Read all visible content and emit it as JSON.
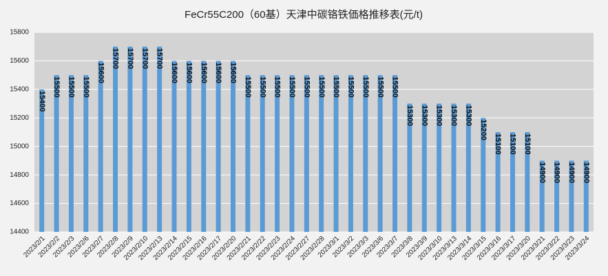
{
  "chart_data": {
    "type": "bar",
    "title": "FeCr55C200（60基）天津中碳铬铁価格推移表(元/t)",
    "categories": [
      "2023/2/1",
      "2023/2/2",
      "2023/2/3",
      "2023/2/6",
      "2023/2/7",
      "2023/2/8",
      "2023/2/9",
      "2023/2/10",
      "2023/2/13",
      "2023/2/14",
      "2023/2/15",
      "2023/2/16",
      "2023/2/17",
      "2023/2/20",
      "2023/2/21",
      "2023/2/22",
      "2023/2/23",
      "2023/2/24",
      "2023/2/27",
      "2023/2/28",
      "2023/3/1",
      "2023/3/2",
      "2023/3/3",
      "2023/3/6",
      "2023/3/7",
      "2023/3/8",
      "2023/3/9",
      "2023/3/10",
      "2023/3/13",
      "2023/3/14",
      "2023/3/15",
      "2023/3/16",
      "2023/3/17",
      "2023/3/20",
      "2023/3/21",
      "2023/3/22",
      "2023/3/23",
      "2023/3/24"
    ],
    "values": [
      15400,
      15500,
      15500,
      15500,
      15600,
      15700,
      15700,
      15700,
      15700,
      15600,
      15600,
      15600,
      15600,
      15600,
      15500,
      15500,
      15500,
      15500,
      15500,
      15500,
      15500,
      15500,
      15500,
      15500,
      15500,
      15300,
      15300,
      15300,
      15300,
      15300,
      15200,
      15100,
      15100,
      15100,
      14900,
      14900,
      14900,
      14900
    ],
    "color": "#5b9bd5",
    "ylim": [
      14400,
      15800
    ],
    "yticks": [
      14400,
      14600,
      14800,
      15000,
      15200,
      15400,
      15600,
      15800
    ],
    "grid": true
  }
}
